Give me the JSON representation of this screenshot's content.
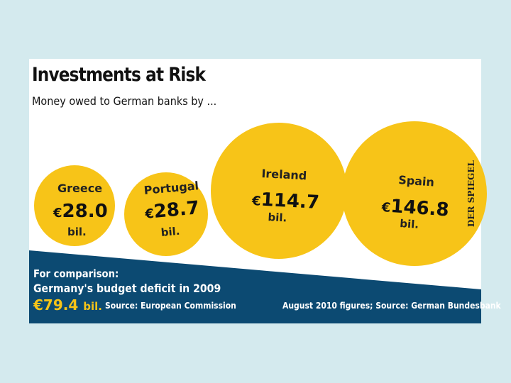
{
  "chart_data": {
    "type": "bubble",
    "title": "Investments at Risk",
    "subtitle": "Money owed to German banks by ...",
    "currency": "€",
    "unit": "bil.",
    "series": [
      {
        "country": "Greece",
        "value": 28.0,
        "value_label": "28.0"
      },
      {
        "country": "Portugal",
        "value": 28.7,
        "value_label": "28.7"
      },
      {
        "country": "Ireland",
        "value": 114.7,
        "value_label": "114.7"
      },
      {
        "country": "Spain",
        "value": 146.8,
        "value_label": "146.8"
      }
    ],
    "comparison": {
      "line1": "For comparison:",
      "line2": "Germany's budget deficit in 2009",
      "value": 79.4,
      "value_label": "79.4",
      "unit": "bil."
    },
    "sources": {
      "left": "Source: European Commission",
      "right": "August 2010 figures; Source: German Bundesbank"
    },
    "brand": "DER SPIEGEL"
  },
  "colors": {
    "bubble": "#f7c418",
    "band": "#0c4a72",
    "background": "#d4eaee",
    "card": "#ffffff"
  }
}
